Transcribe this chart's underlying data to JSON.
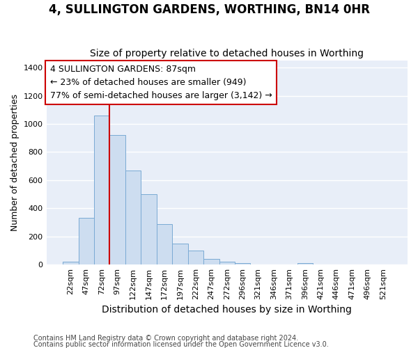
{
  "title": "4, SULLINGTON GARDENS, WORTHING, BN14 0HR",
  "subtitle": "Size of property relative to detached houses in Worthing",
  "xlabel": "Distribution of detached houses by size in Worthing",
  "ylabel": "Number of detached properties",
  "footnote1": "Contains HM Land Registry data © Crown copyright and database right 2024.",
  "footnote2": "Contains public sector information licensed under the Open Government Licence v3.0.",
  "bar_labels": [
    "22sqm",
    "47sqm",
    "72sqm",
    "97sqm",
    "122sqm",
    "147sqm",
    "172sqm",
    "197sqm",
    "222sqm",
    "247sqm",
    "272sqm",
    "296sqm",
    "321sqm",
    "346sqm",
    "371sqm",
    "396sqm",
    "421sqm",
    "446sqm",
    "471sqm",
    "496sqm",
    "521sqm"
  ],
  "bar_values": [
    20,
    330,
    1060,
    920,
    670,
    500,
    290,
    150,
    100,
    40,
    20,
    10,
    0,
    0,
    0,
    10,
    0,
    0,
    0,
    0,
    0
  ],
  "bar_color": "#cdddf0",
  "bar_edge_color": "#7aaad4",
  "vline_color": "#cc0000",
  "vline_x_bar": 2,
  "annotation_text": "4 SULLINGTON GARDENS: 87sqm\n← 23% of detached houses are smaller (949)\n77% of semi-detached houses are larger (3,142) →",
  "annotation_box_facecolor": "#ffffff",
  "annotation_box_edgecolor": "#cc0000",
  "ylim": [
    0,
    1450
  ],
  "yticks": [
    0,
    200,
    400,
    600,
    800,
    1000,
    1200,
    1400
  ],
  "bg_color": "#ffffff",
  "plot_bg_color": "#e8eef8",
  "grid_color": "#ffffff",
  "title_fontsize": 12,
  "subtitle_fontsize": 10,
  "ylabel_fontsize": 9,
  "xlabel_fontsize": 10,
  "tick_fontsize": 8,
  "annot_fontsize": 9
}
